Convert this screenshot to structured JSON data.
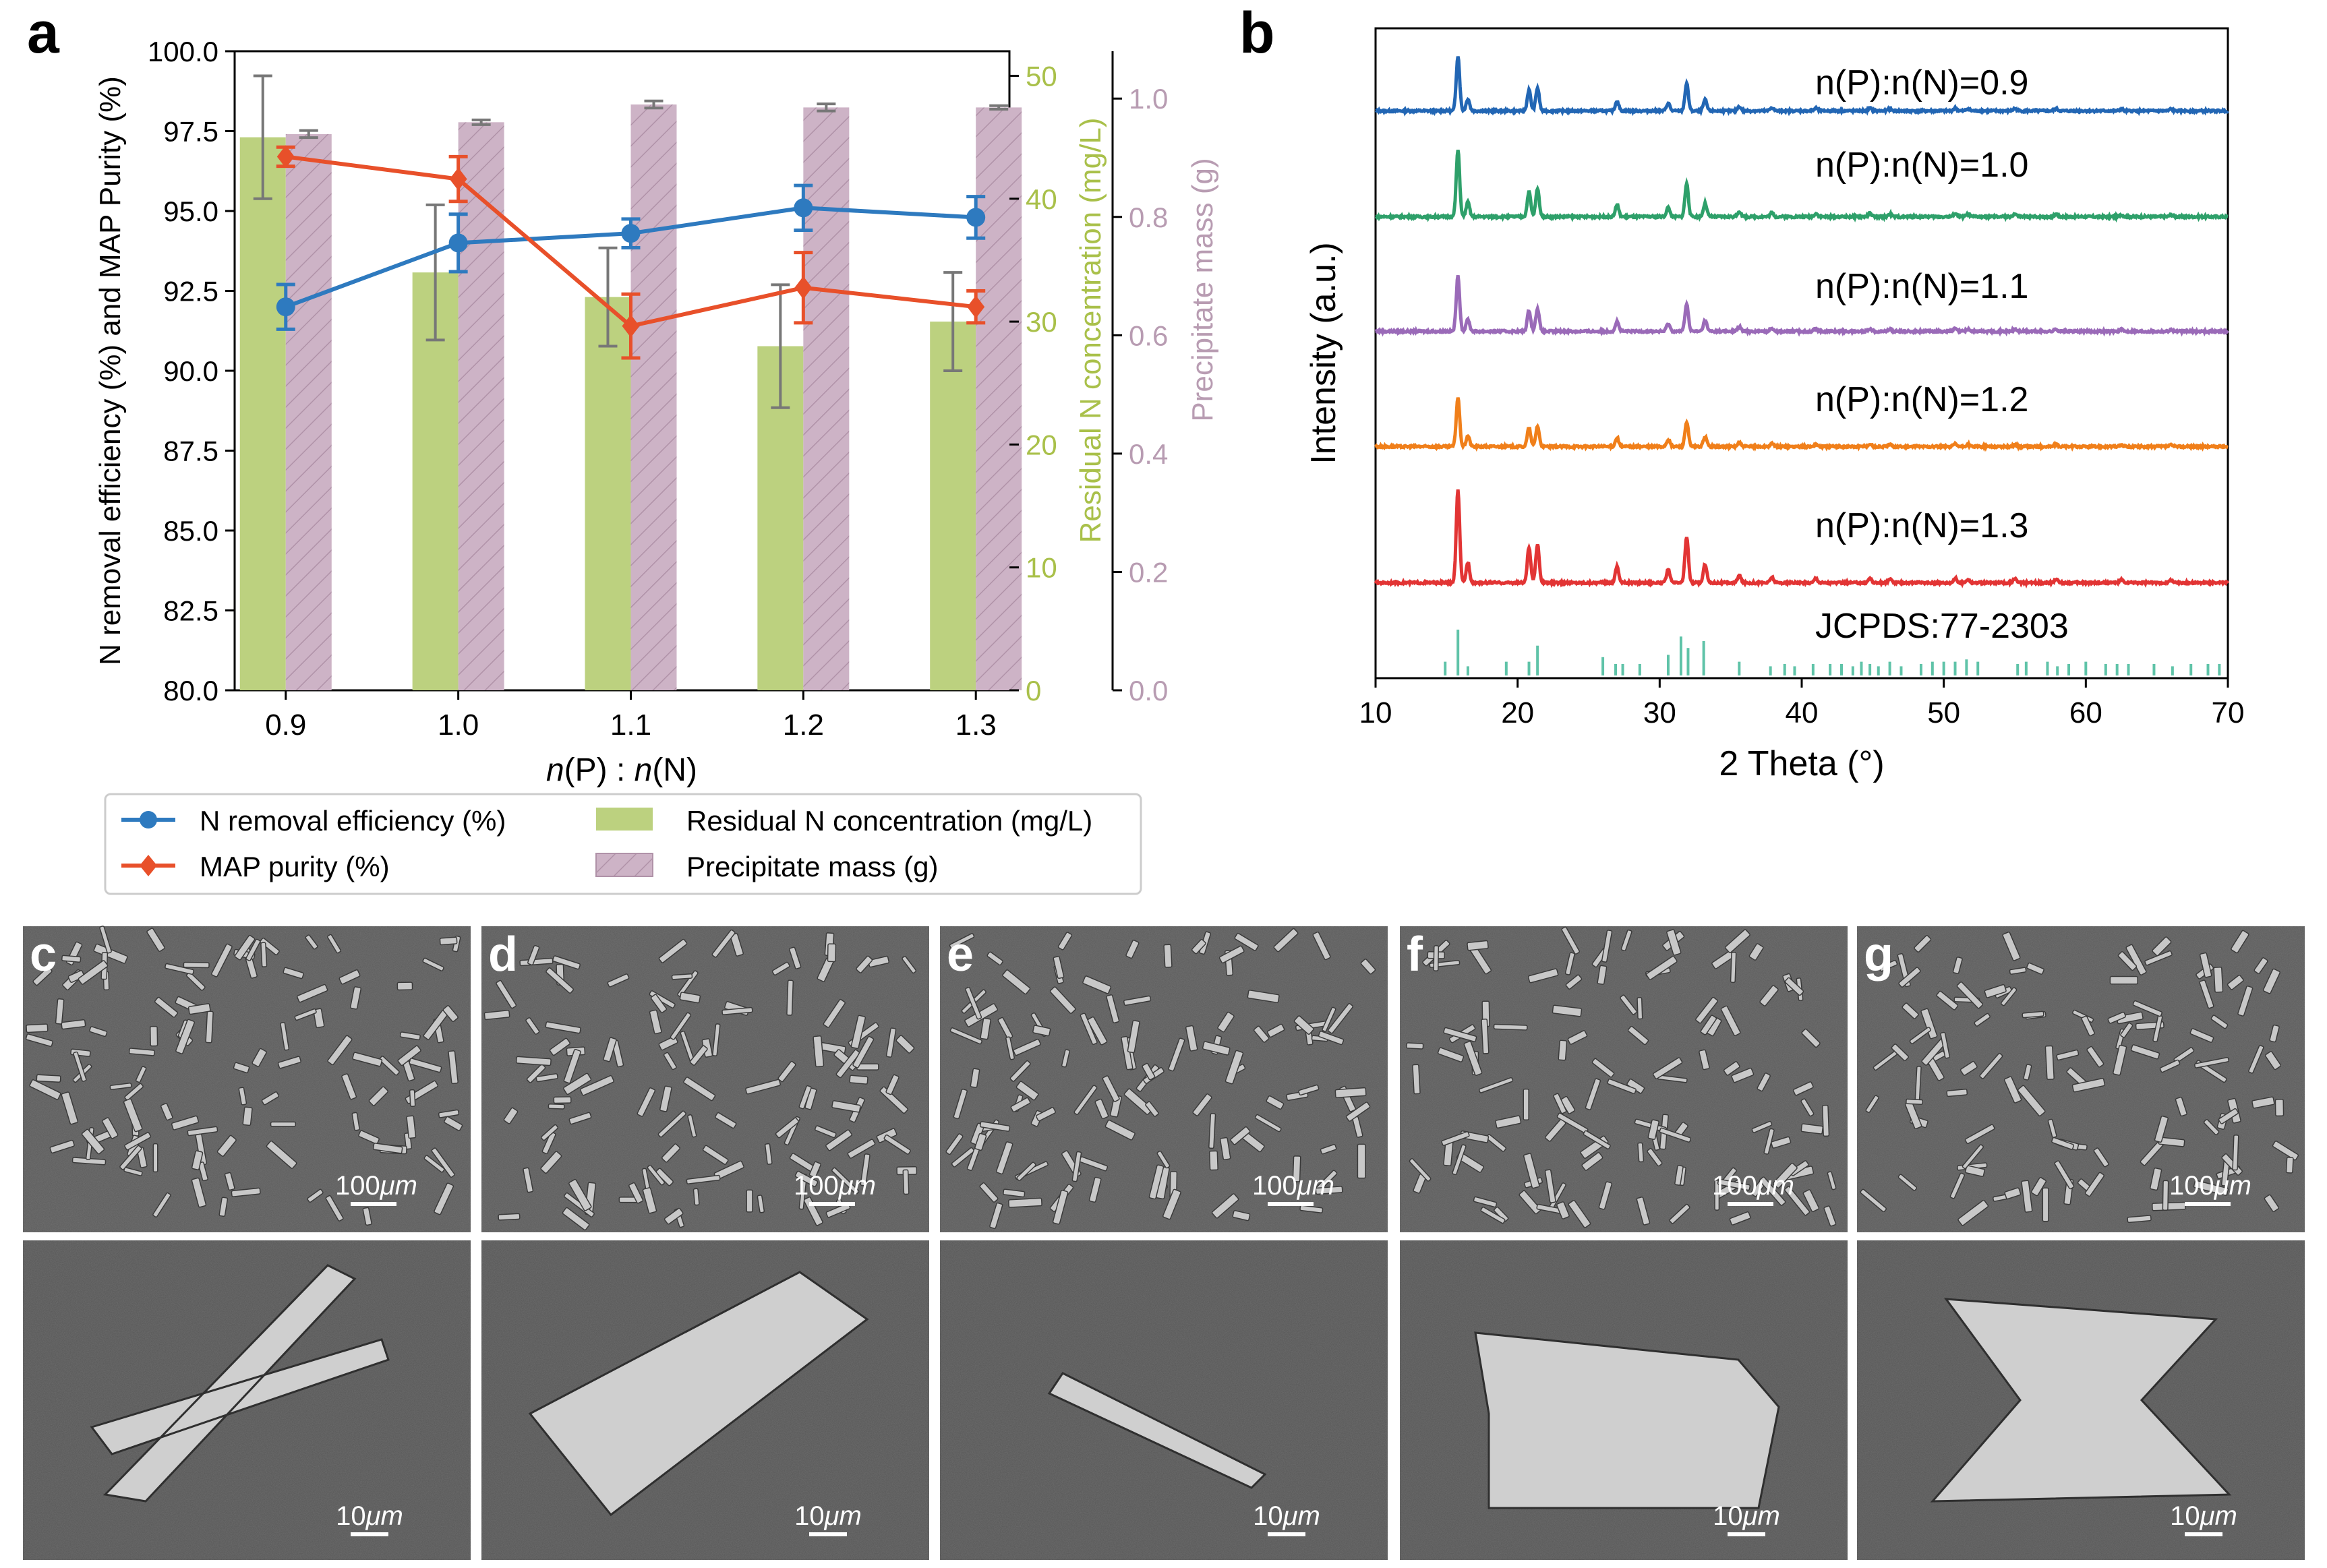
{
  "panel_labels": {
    "a": "a",
    "b": "b",
    "c": "c",
    "d": "d",
    "e": "e",
    "f": "f",
    "g": "g"
  },
  "colors": {
    "n_removal": "#2e7abf",
    "map_purity": "#e8502a",
    "residual": "#bcd17f",
    "mass": "#cdb3c6",
    "mass_hatch": "#b092a8",
    "errbar": "#777777",
    "lime_axis": "#a9c04a",
    "mauve_axis": "#b89cb2",
    "xrd": [
      "#2266b4",
      "#2ea06a",
      "#9a6ab8",
      "#f07f1a",
      "#e23434"
    ],
    "ref": "#5fc3a8"
  },
  "chart_data": [
    {
      "id": "panel-a",
      "type": "bar",
      "xlabel_italic": "n",
      "xlabel_parts": [
        "(P) : ",
        "(N)"
      ],
      "xlabel": "n(P) : n(N)",
      "ylabel": "N removal efficiency (%) and MAP Purity (%)",
      "ylabel2": "Residual N concentration (mg/L)",
      "ylabel3": "Precipitate mass (g)",
      "ylim": [
        80,
        100
      ],
      "yticks": [
        "80.0",
        "82.5",
        "85.0",
        "87.5",
        "90.0",
        "92.5",
        "95.0",
        "97.5",
        "100.0"
      ],
      "ylim2": [
        0,
        52
      ],
      "yticks2": [
        "0",
        "10",
        "20",
        "30",
        "40",
        "50"
      ],
      "ylim3": [
        0,
        1.08
      ],
      "yticks3": [
        "0.0",
        "0.2",
        "0.4",
        "0.6",
        "0.8",
        "1.0"
      ],
      "categories": [
        "0.9",
        "1.0",
        "1.1",
        "1.2",
        "1.3"
      ],
      "series": [
        {
          "name": "N removal efficiency (%)",
          "kind": "line",
          "marker": "circle",
          "values": [
            92.0,
            94.0,
            94.3,
            95.1,
            94.8
          ],
          "err": [
            0.7,
            0.9,
            0.45,
            0.7,
            0.65
          ]
        },
        {
          "name": "MAP purity (%)",
          "kind": "line",
          "marker": "diamond",
          "values": [
            96.7,
            96.0,
            91.4,
            92.6,
            92.0
          ],
          "err": [
            0.3,
            0.7,
            1.0,
            1.1,
            0.5
          ]
        },
        {
          "name": "Residual N concentration (mg/L)",
          "kind": "bar",
          "axis": 2,
          "values": [
            45.0,
            34.0,
            32.0,
            28.0,
            30.0
          ],
          "err": [
            5.0,
            5.5,
            4.0,
            5.0,
            4.0
          ]
        },
        {
          "name": "Precipitate mass (g)",
          "kind": "bar",
          "axis": 3,
          "values": [
            0.94,
            0.96,
            0.99,
            0.985,
            0.985
          ],
          "err": [
            0.006,
            0.004,
            0.006,
            0.006,
            0.003
          ]
        }
      ],
      "legend_position": "below"
    },
    {
      "id": "panel-b",
      "type": "line",
      "xlabel": "2 Theta (°)",
      "ylabel": "Intensity (a.u.)",
      "xlim": [
        10,
        70
      ],
      "xticks": [
        "10",
        "20",
        "30",
        "40",
        "50",
        "60",
        "70"
      ],
      "peaks_2theta": [
        15.8,
        16.5,
        20.8,
        21.4,
        27.0,
        30.6,
        31.9,
        33.2,
        35.6,
        37.9,
        41.0,
        44.8,
        46.2,
        50.8,
        51.7,
        55.0,
        57.9,
        62.5,
        66.0
      ],
      "peak_heights": [
        1.0,
        0.22,
        0.38,
        0.42,
        0.18,
        0.14,
        0.5,
        0.2,
        0.08,
        0.06,
        0.05,
        0.05,
        0.04,
        0.05,
        0.04,
        0.04,
        0.04,
        0.03,
        0.03
      ],
      "series": [
        {
          "name": "n(P):n(N)=0.9",
          "scale": 0.95
        },
        {
          "name": "n(P):n(N)=1.0",
          "scale": 1.15
        },
        {
          "name": "n(P):n(N)=1.1",
          "scale": 0.95
        },
        {
          "name": "n(P):n(N)=1.2",
          "scale": 0.85
        },
        {
          "name": "n(P):n(N)=1.3",
          "scale": 1.6
        }
      ],
      "reference": {
        "name": "JCPDS:77-2303",
        "lines": [
          14.9,
          15.8,
          16.5,
          19.2,
          20.8,
          21.4,
          26.0,
          26.9,
          27.4,
          28.6,
          30.6,
          31.5,
          32.0,
          33.1,
          35.6,
          37.8,
          38.8,
          39.5,
          40.8,
          42.0,
          42.8,
          43.6,
          44.2,
          44.8,
          45.4,
          46.2,
          47.0,
          48.4,
          49.2,
          50.0,
          50.8,
          51.6,
          52.4,
          55.2,
          55.8,
          57.3,
          58.0,
          58.8,
          60.0,
          61.4,
          62.2,
          63.0,
          64.8,
          66.1,
          67.4,
          68.6,
          69.4
        ],
        "heights": [
          0.3,
          1.0,
          0.2,
          0.3,
          0.3,
          0.65,
          0.4,
          0.25,
          0.25,
          0.25,
          0.45,
          0.85,
          0.6,
          0.75,
          0.3,
          0.2,
          0.25,
          0.2,
          0.25,
          0.25,
          0.25,
          0.2,
          0.3,
          0.25,
          0.2,
          0.3,
          0.2,
          0.25,
          0.3,
          0.3,
          0.3,
          0.35,
          0.3,
          0.25,
          0.3,
          0.3,
          0.2,
          0.25,
          0.3,
          0.25,
          0.25,
          0.25,
          0.25,
          0.2,
          0.25,
          0.25,
          0.25
        ]
      }
    }
  ],
  "sem": {
    "panels": [
      "c",
      "d",
      "e",
      "f",
      "g"
    ],
    "scale_top": [
      "100",
      "100",
      "100",
      "100",
      "100"
    ],
    "scale_bottom": [
      "10",
      "10",
      "10",
      "10",
      "10"
    ],
    "unit": "μm"
  }
}
